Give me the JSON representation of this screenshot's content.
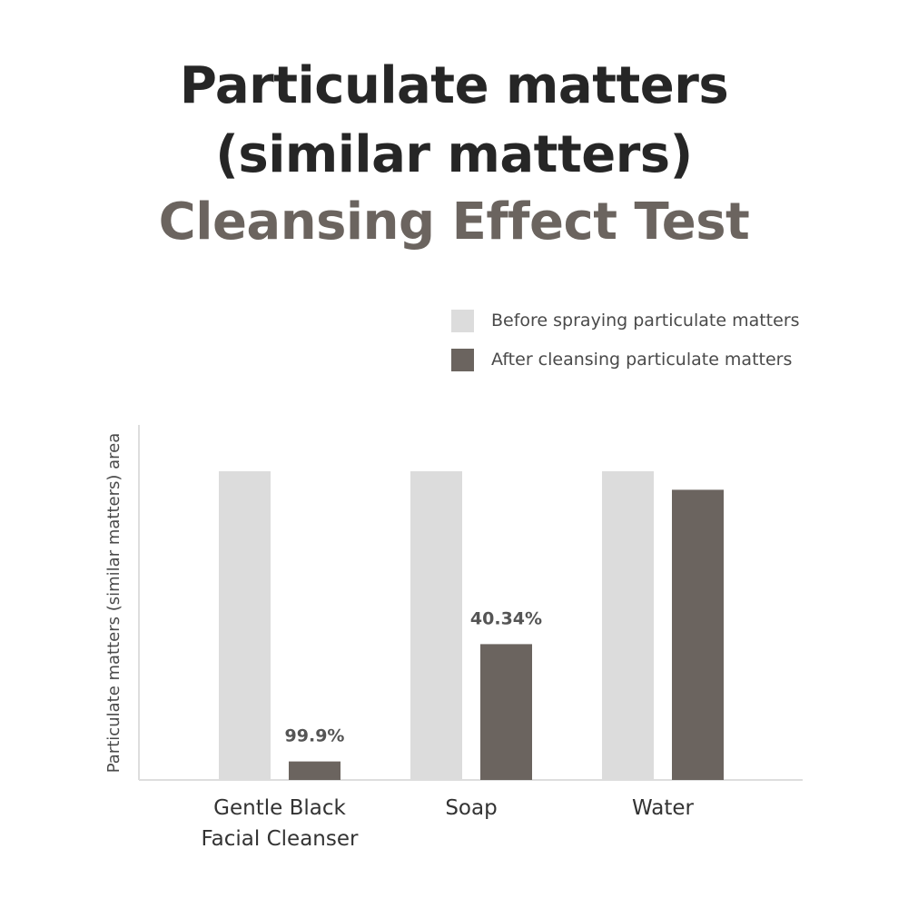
{
  "title": {
    "line1": "Particulate matters",
    "line2": "(similar matters)",
    "line3": "Cleansing Effect Test"
  },
  "legend": {
    "before_label": "Before spraying particulate matters",
    "after_label": "After cleansing particulate matters"
  },
  "colors": {
    "before": "#dcdcdc",
    "after": "#6b645f",
    "title_dark": "#262626",
    "title_accent": "#6b645f",
    "axis": "#dedede"
  },
  "chart_data": {
    "type": "bar",
    "title": "Particulate matters (similar matters) Cleansing Effect Test",
    "ylabel": "Particulate matters (similar matters) area",
    "xlabel": "",
    "categories": [
      [
        "Gentle Black",
        "Facial Cleanser"
      ],
      [
        "Soap"
      ],
      [
        "Water"
      ]
    ],
    "series": [
      {
        "name": "Before spraying particulate matters",
        "values": [
          100,
          100,
          100
        ]
      },
      {
        "name": "After cleansing particulate matters",
        "values": [
          6,
          44,
          94
        ]
      }
    ],
    "data_labels": [
      "99.9%",
      "40.34%",
      ""
    ],
    "ylim": [
      0,
      115
    ],
    "grid": false,
    "legend_position": "top-right"
  }
}
